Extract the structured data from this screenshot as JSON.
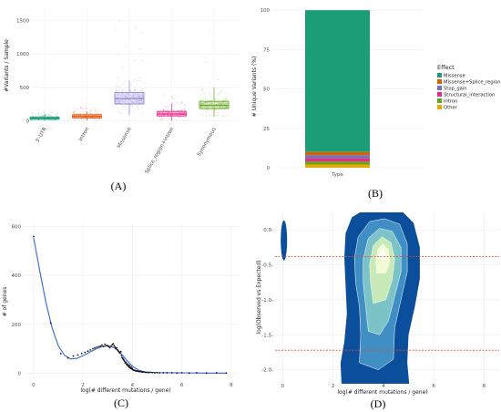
{
  "chart_data": [
    {
      "panel_label": "(A)",
      "type": "box",
      "ylabel": "#Variants / Sample",
      "categories": [
        "3'-UTR",
        "Intron",
        "Missense",
        "Splice_region+intron",
        "Synonymous"
      ],
      "colors": [
        "#1b9e77",
        "#e6550d",
        "#8c7ad6",
        "#e7298a",
        "#66a61e"
      ],
      "boxes": [
        {
          "q1": 20,
          "median": 35,
          "q3": 55,
          "min": 0,
          "max": 100,
          "jitter_max": 130
        },
        {
          "q1": 40,
          "median": 65,
          "q3": 90,
          "min": 0,
          "max": 140,
          "jitter_max": 200
        },
        {
          "q1": 250,
          "median": 330,
          "q3": 420,
          "min": 80,
          "max": 600,
          "jitter_max": 1500
        },
        {
          "q1": 70,
          "median": 100,
          "q3": 140,
          "min": 0,
          "max": 250,
          "jitter_max": 400
        },
        {
          "q1": 180,
          "median": 230,
          "q3": 290,
          "min": 60,
          "max": 500,
          "jitter_max": 1620
        }
      ],
      "yticks": [
        0,
        500,
        1000,
        1500
      ],
      "ylim": [
        -50,
        1700
      ],
      "grid": true
    },
    {
      "panel_label": "(B)",
      "type": "bar",
      "stacked": true,
      "ylabel": "# Unique Variants (%)",
      "categories": [
        "Type"
      ],
      "series": [
        {
          "name": "Missense",
          "values": [
            90
          ],
          "color": "#1b9e77"
        },
        {
          "name": "Missense+Splice_region",
          "values": [
            2
          ],
          "color": "#d95f02"
        },
        {
          "name": "Stop_gain",
          "values": [
            2
          ],
          "color": "#7570b3"
        },
        {
          "name": "Structural_interaction",
          "values": [
            2
          ],
          "color": "#e7298a"
        },
        {
          "name": "Intron",
          "values": [
            2
          ],
          "color": "#66a61e"
        },
        {
          "name": "Other",
          "values": [
            2
          ],
          "color": "#e6ab02"
        }
      ],
      "legend_title": "Effect",
      "yticks": [
        0,
        25,
        50,
        75,
        100
      ],
      "ylim": [
        0,
        103
      ],
      "legend": "right",
      "grid": true
    },
    {
      "panel_label": "(C)",
      "type": "scatter",
      "xlabel": "log(# different mutations / gene)",
      "ylabel": "# of genes",
      "fit_color": "#3366cc",
      "points": [
        [
          0,
          560
        ],
        [
          0.69,
          205
        ],
        [
          1.1,
          80
        ],
        [
          1.39,
          62
        ],
        [
          1.61,
          70
        ],
        [
          1.79,
          74
        ],
        [
          1.95,
          80
        ],
        [
          2.08,
          85
        ],
        [
          2.2,
          90
        ],
        [
          2.3,
          95
        ],
        [
          2.4,
          100
        ],
        [
          2.48,
          103
        ],
        [
          2.56,
          106
        ],
        [
          2.64,
          108
        ],
        [
          2.71,
          111
        ],
        [
          2.77,
          115
        ],
        [
          2.83,
          109
        ],
        [
          2.89,
          118
        ],
        [
          2.94,
          113
        ],
        [
          3.0,
          112
        ],
        [
          3.04,
          108
        ],
        [
          3.09,
          104
        ],
        [
          3.14,
          110
        ],
        [
          3.18,
          116
        ],
        [
          3.22,
          120
        ],
        [
          3.26,
          112
        ],
        [
          3.3,
          106
        ],
        [
          3.33,
          100
        ],
        [
          3.37,
          103
        ],
        [
          3.4,
          95
        ],
        [
          3.43,
          90
        ],
        [
          3.47,
          85
        ],
        [
          3.5,
          82
        ],
        [
          3.53,
          88
        ],
        [
          3.56,
          72
        ],
        [
          3.58,
          64
        ],
        [
          3.61,
          60
        ],
        [
          3.64,
          56
        ],
        [
          3.66,
          52
        ],
        [
          3.69,
          48
        ],
        [
          3.71,
          42
        ],
        [
          3.74,
          44
        ],
        [
          3.76,
          36
        ],
        [
          3.78,
          38
        ],
        [
          3.81,
          30
        ],
        [
          3.83,
          34
        ],
        [
          3.85,
          28
        ],
        [
          3.87,
          24
        ],
        [
          3.89,
          30
        ],
        [
          3.91,
          22
        ],
        [
          3.93,
          20
        ],
        [
          3.95,
          24
        ],
        [
          3.97,
          17
        ],
        [
          3.99,
          19
        ],
        [
          4.01,
          15
        ],
        [
          4.03,
          13
        ],
        [
          4.06,
          11
        ],
        [
          4.09,
          12
        ],
        [
          4.12,
          10
        ],
        [
          4.15,
          8
        ],
        [
          4.19,
          9
        ],
        [
          4.23,
          7
        ],
        [
          4.27,
          6
        ],
        [
          4.31,
          7
        ],
        [
          4.36,
          5
        ],
        [
          4.41,
          4
        ],
        [
          4.46,
          5
        ],
        [
          4.52,
          3
        ],
        [
          4.58,
          3
        ],
        [
          4.65,
          2
        ],
        [
          4.72,
          3
        ],
        [
          4.8,
          2
        ],
        [
          4.9,
          1
        ],
        [
          5.0,
          2
        ],
        [
          5.1,
          1
        ],
        [
          5.25,
          1
        ],
        [
          5.4,
          1
        ],
        [
          5.6,
          1
        ],
        [
          5.8,
          0
        ],
        [
          6.0,
          1
        ],
        [
          6.3,
          0
        ],
        [
          6.6,
          1
        ],
        [
          7.0,
          0
        ],
        [
          7.4,
          1
        ],
        [
          7.8,
          0
        ]
      ],
      "fit": [
        [
          0,
          555
        ],
        [
          0.25,
          420
        ],
        [
          0.5,
          290
        ],
        [
          0.75,
          185
        ],
        [
          1.0,
          112
        ],
        [
          1.25,
          73
        ],
        [
          1.5,
          58
        ],
        [
          1.75,
          60
        ],
        [
          2.0,
          71
        ],
        [
          2.25,
          85
        ],
        [
          2.5,
          98
        ],
        [
          2.75,
          108
        ],
        [
          3.0,
          112
        ],
        [
          3.25,
          105
        ],
        [
          3.5,
          85
        ],
        [
          3.75,
          55
        ],
        [
          4.0,
          28
        ],
        [
          4.25,
          12
        ],
        [
          4.5,
          5
        ],
        [
          5.0,
          2
        ],
        [
          6.0,
          1
        ],
        [
          7.0,
          0
        ],
        [
          7.8,
          0
        ]
      ],
      "xticks": [
        0,
        2,
        4,
        6,
        8
      ],
      "yticks": [
        0,
        200,
        400,
        600
      ],
      "xlim": [
        -0.4,
        8.3
      ],
      "ylim": [
        -25,
        610
      ],
      "grid": true
    },
    {
      "panel_label": "(D)",
      "type": "density",
      "xlabel": "log(# different mutations / gene)",
      "ylabel": "log(Observed vs Expected)",
      "xticks": [
        0,
        2,
        4,
        6,
        8
      ],
      "yticks": [
        0.0,
        -0.5,
        -1.0,
        -1.5,
        -2.0
      ],
      "ytick_labels": [
        "0.0-",
        "-0.5-",
        "-1.0-",
        "-1.5-",
        "-2.0-"
      ],
      "xlim": [
        -0.3,
        8.6
      ],
      "ylim": [
        -2.2,
        0.25
      ],
      "hlines": [
        -0.38,
        -1.72
      ],
      "hline_color": "#e34a33",
      "density_levels": [
        "#0b4f9c",
        "#3f8fc5",
        "#7cc3c8",
        "#c8e9b8",
        "#f2fad6",
        "#ffffff"
      ],
      "grid": true
    }
  ]
}
